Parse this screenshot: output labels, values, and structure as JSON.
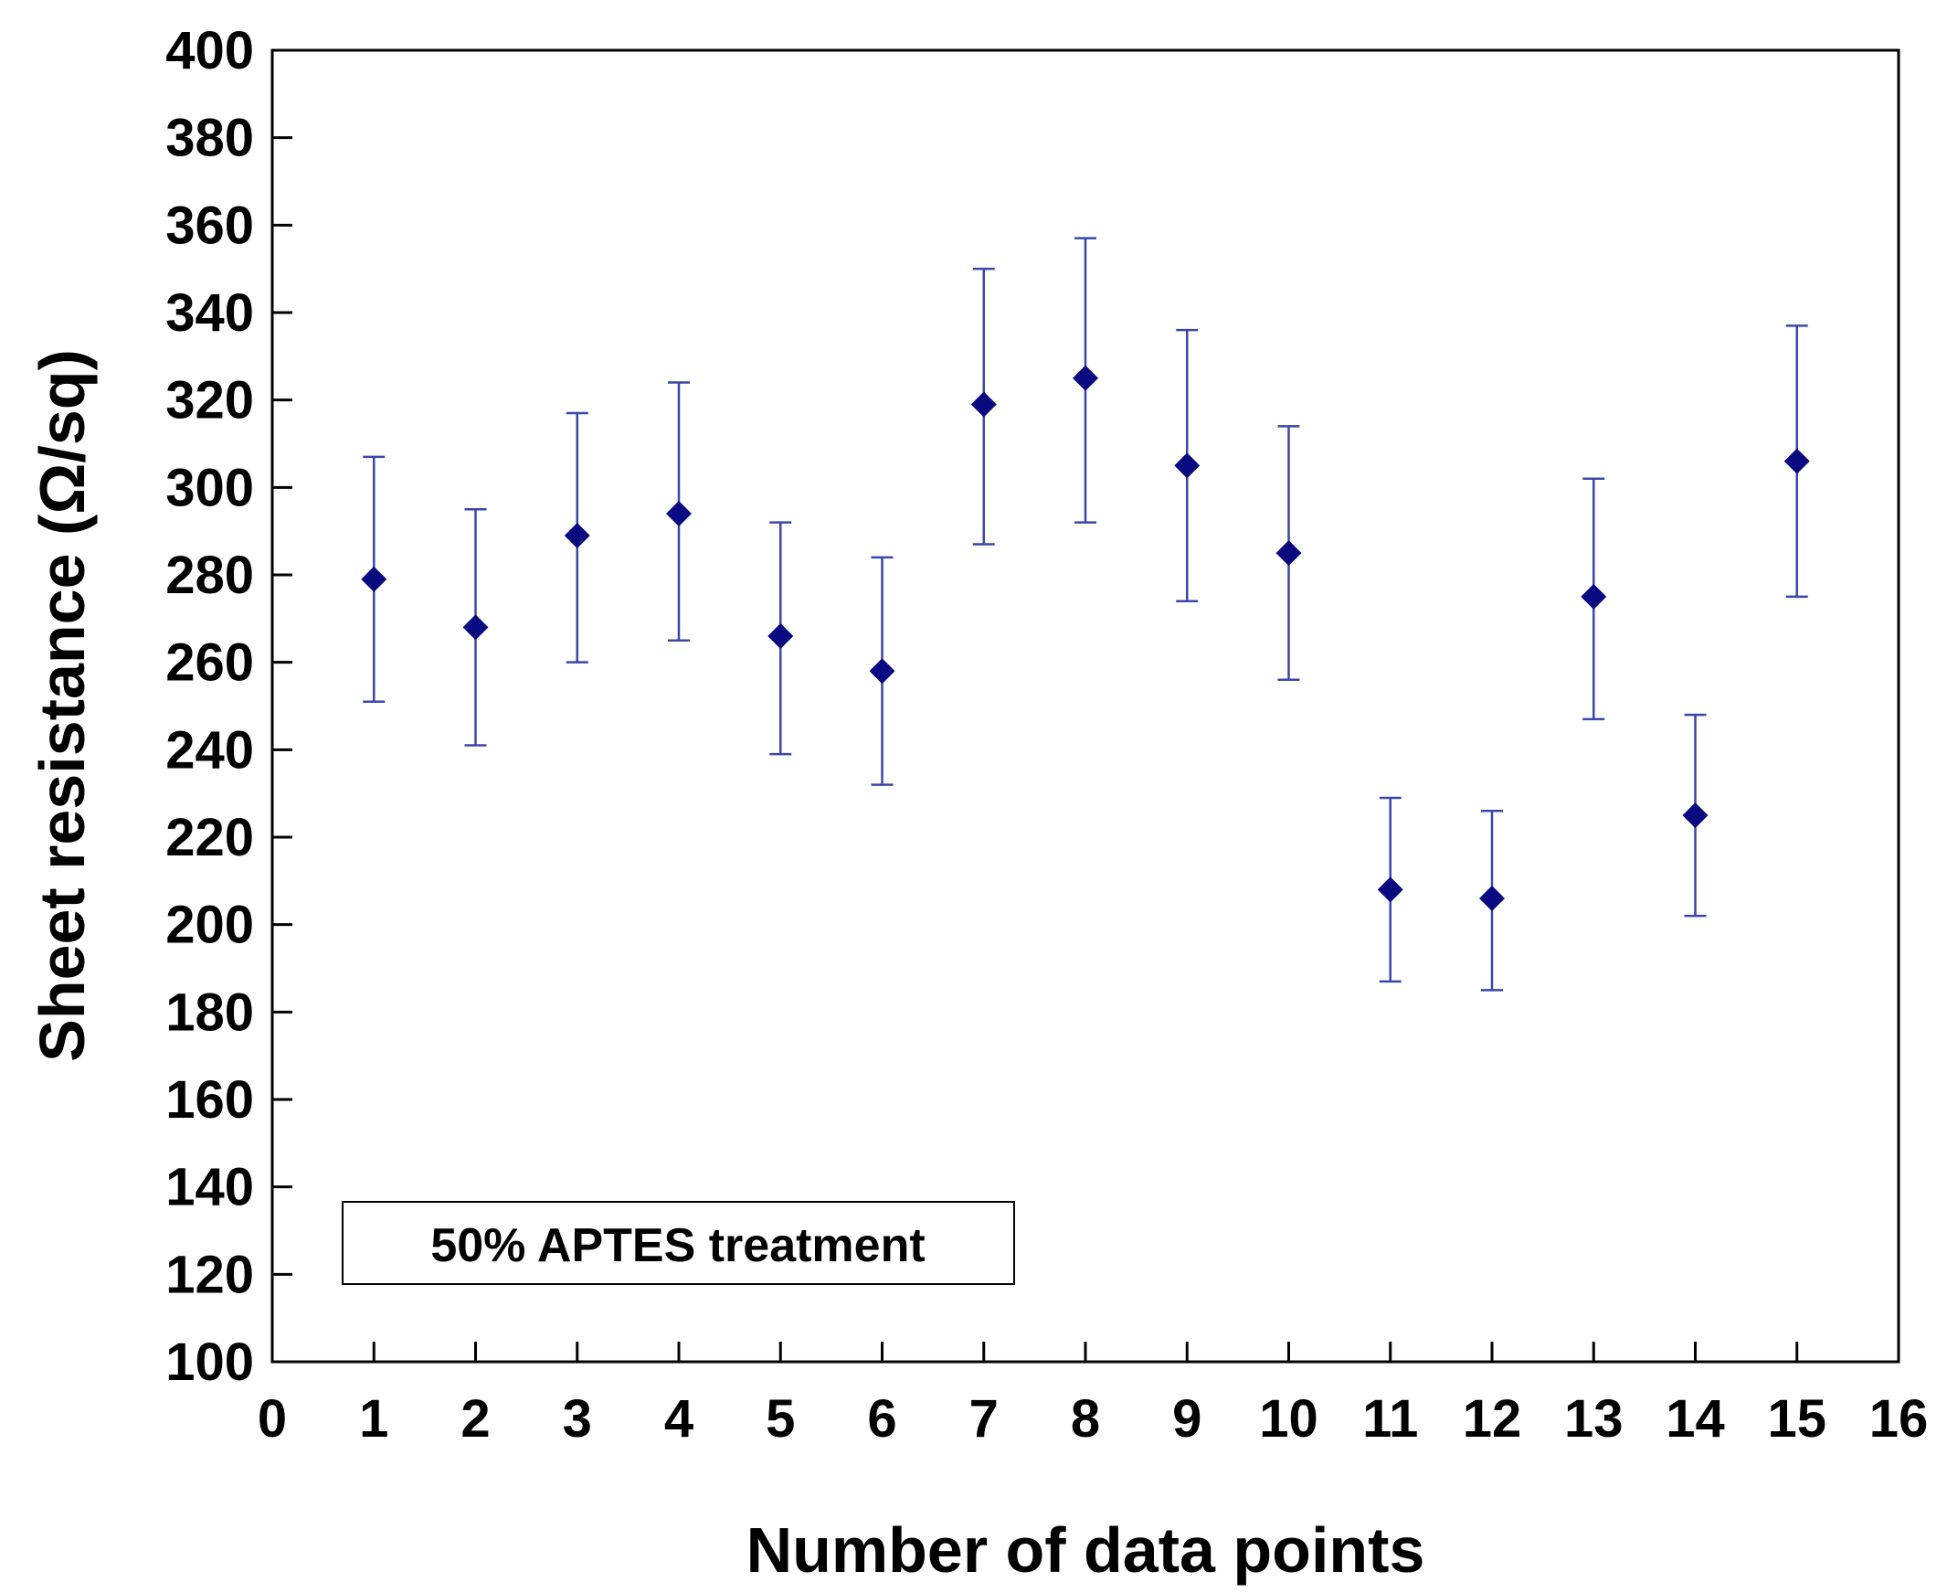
{
  "chart_data": {
    "type": "scatter",
    "title": "",
    "xlabel": "Number of data points",
    "ylabel": "Sheet resistance (Ω/sq)",
    "xlim": [
      0,
      16
    ],
    "ylim": [
      100,
      400
    ],
    "xticks": [
      0,
      1,
      2,
      3,
      4,
      5,
      6,
      7,
      8,
      9,
      10,
      11,
      12,
      13,
      14,
      15,
      16
    ],
    "yticks": [
      100,
      120,
      140,
      160,
      180,
      200,
      220,
      240,
      260,
      280,
      300,
      320,
      340,
      360,
      380,
      400
    ],
    "grid": false,
    "annotation": "50% APTES treatment",
    "series": [
      {
        "name": "50% APTES treatment",
        "marker": "diamond",
        "color": "#0a0a80",
        "errorbar_color": "#3c46a8",
        "x": [
          1,
          2,
          3,
          4,
          5,
          6,
          7,
          8,
          9,
          10,
          11,
          12,
          13,
          14,
          15
        ],
        "y": [
          279,
          268,
          289,
          294,
          266,
          258,
          319,
          325,
          305,
          285,
          208,
          206,
          275,
          225,
          306
        ],
        "y_upper": [
          307,
          295,
          317,
          324,
          292,
          284,
          350,
          357,
          336,
          314,
          229,
          226,
          302,
          248,
          337
        ],
        "y_lower": [
          251,
          241,
          260,
          265,
          239,
          232,
          287,
          292,
          274,
          256,
          187,
          185,
          247,
          202,
          275
        ]
      }
    ]
  }
}
